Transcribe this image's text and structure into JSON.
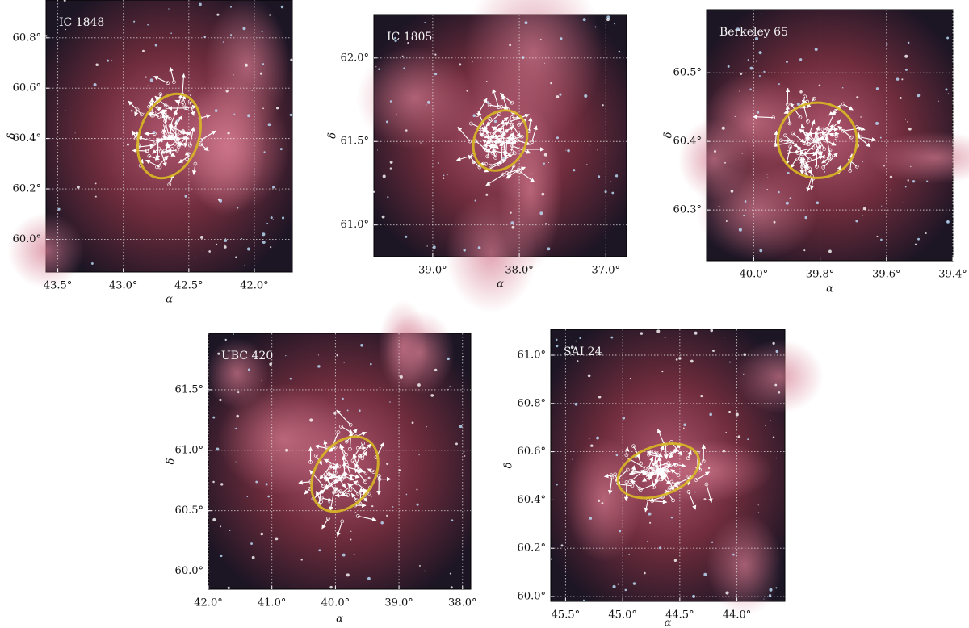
{
  "chart_data": [
    {
      "type": "image",
      "title": "IC 1848",
      "xlabel": "α",
      "ylabel": "δ",
      "xlim": [
        43.59,
        41.71
      ],
      "ylim": [
        59.87,
        60.95
      ],
      "xticks": [
        {
          "value": 43.5,
          "label": "43.5°"
        },
        {
          "value": 43.0,
          "label": "43.0°"
        },
        {
          "value": 42.5,
          "label": "42.5°"
        },
        {
          "value": 42.0,
          "label": "42.0°"
        }
      ],
      "yticks": [
        {
          "value": 60.0,
          "label": "60.0°"
        },
        {
          "value": 60.2,
          "label": "60.2°"
        },
        {
          "value": 60.4,
          "label": "60.4°"
        },
        {
          "value": 60.6,
          "label": "60.6°"
        },
        {
          "value": 60.8,
          "label": "60.8°"
        }
      ],
      "grid": true
    },
    {
      "type": "image",
      "title": "IC 1805",
      "xlabel": "α",
      "ylabel": "δ",
      "xlim": [
        39.68,
        36.76
      ],
      "ylim": [
        60.81,
        62.26
      ],
      "xticks": [
        {
          "value": 39.0,
          "label": "39.0°"
        },
        {
          "value": 38.0,
          "label": "38.0°"
        },
        {
          "value": 37.0,
          "label": "37.0°"
        }
      ],
      "yticks": [
        {
          "value": 61.0,
          "label": "61.0°"
        },
        {
          "value": 61.5,
          "label": "61.5°"
        },
        {
          "value": 62.0,
          "label": "62.0°"
        }
      ],
      "grid": true
    },
    {
      "type": "image",
      "title": "Berkeley 65",
      "xlabel": "α",
      "ylabel": "δ",
      "xlim": [
        40.142,
        39.4
      ],
      "ylim": [
        60.226,
        60.592
      ],
      "xticks": [
        {
          "value": 40.0,
          "label": "40.0°"
        },
        {
          "value": 39.8,
          "label": "39.8°"
        },
        {
          "value": 39.6,
          "label": "39.6°"
        },
        {
          "value": 39.4,
          "label": "39.4°"
        }
      ],
      "yticks": [
        {
          "value": 60.3,
          "label": "60.3°"
        },
        {
          "value": 60.4,
          "label": "60.4°"
        },
        {
          "value": 60.5,
          "label": "60.5°"
        }
      ],
      "grid": true
    },
    {
      "type": "image",
      "title": "UBC 420",
      "xlabel": "α",
      "ylabel": "δ",
      "xlim": [
        42.0,
        37.87
      ],
      "ylim": [
        59.85,
        61.967
      ],
      "xticks": [
        {
          "value": 42.0,
          "label": "42.0°"
        },
        {
          "value": 41.0,
          "label": "41.0°"
        },
        {
          "value": 40.0,
          "label": "40.0°"
        },
        {
          "value": 39.0,
          "label": "39.0°"
        },
        {
          "value": 38.0,
          "label": "38.0°"
        }
      ],
      "yticks": [
        {
          "value": 60.0,
          "label": "60.0°"
        },
        {
          "value": 60.5,
          "label": "60.5°"
        },
        {
          "value": 61.0,
          "label": "61.0°"
        },
        {
          "value": 61.5,
          "label": "61.5°"
        }
      ],
      "grid": true
    },
    {
      "type": "image",
      "title": "SAI 24",
      "xlabel": "α",
      "ylabel": "δ",
      "xlim": [
        45.63,
        43.58
      ],
      "ylim": [
        59.98,
        61.107
      ],
      "xticks": [
        {
          "value": 45.5,
          "label": "45.5°"
        },
        {
          "value": 45.0,
          "label": "45.0°"
        },
        {
          "value": 44.5,
          "label": "44.5°"
        },
        {
          "value": 44.0,
          "label": "44.0°"
        }
      ],
      "yticks": [
        {
          "value": 60.0,
          "label": "60.0°"
        },
        {
          "value": 60.2,
          "label": "60.2°"
        },
        {
          "value": 60.4,
          "label": "60.4°"
        },
        {
          "value": 60.6,
          "label": "60.6°"
        },
        {
          "value": 60.8,
          "label": "60.8°"
        },
        {
          "value": 61.0,
          "label": "61.0°"
        }
      ],
      "grid": true
    }
  ]
}
